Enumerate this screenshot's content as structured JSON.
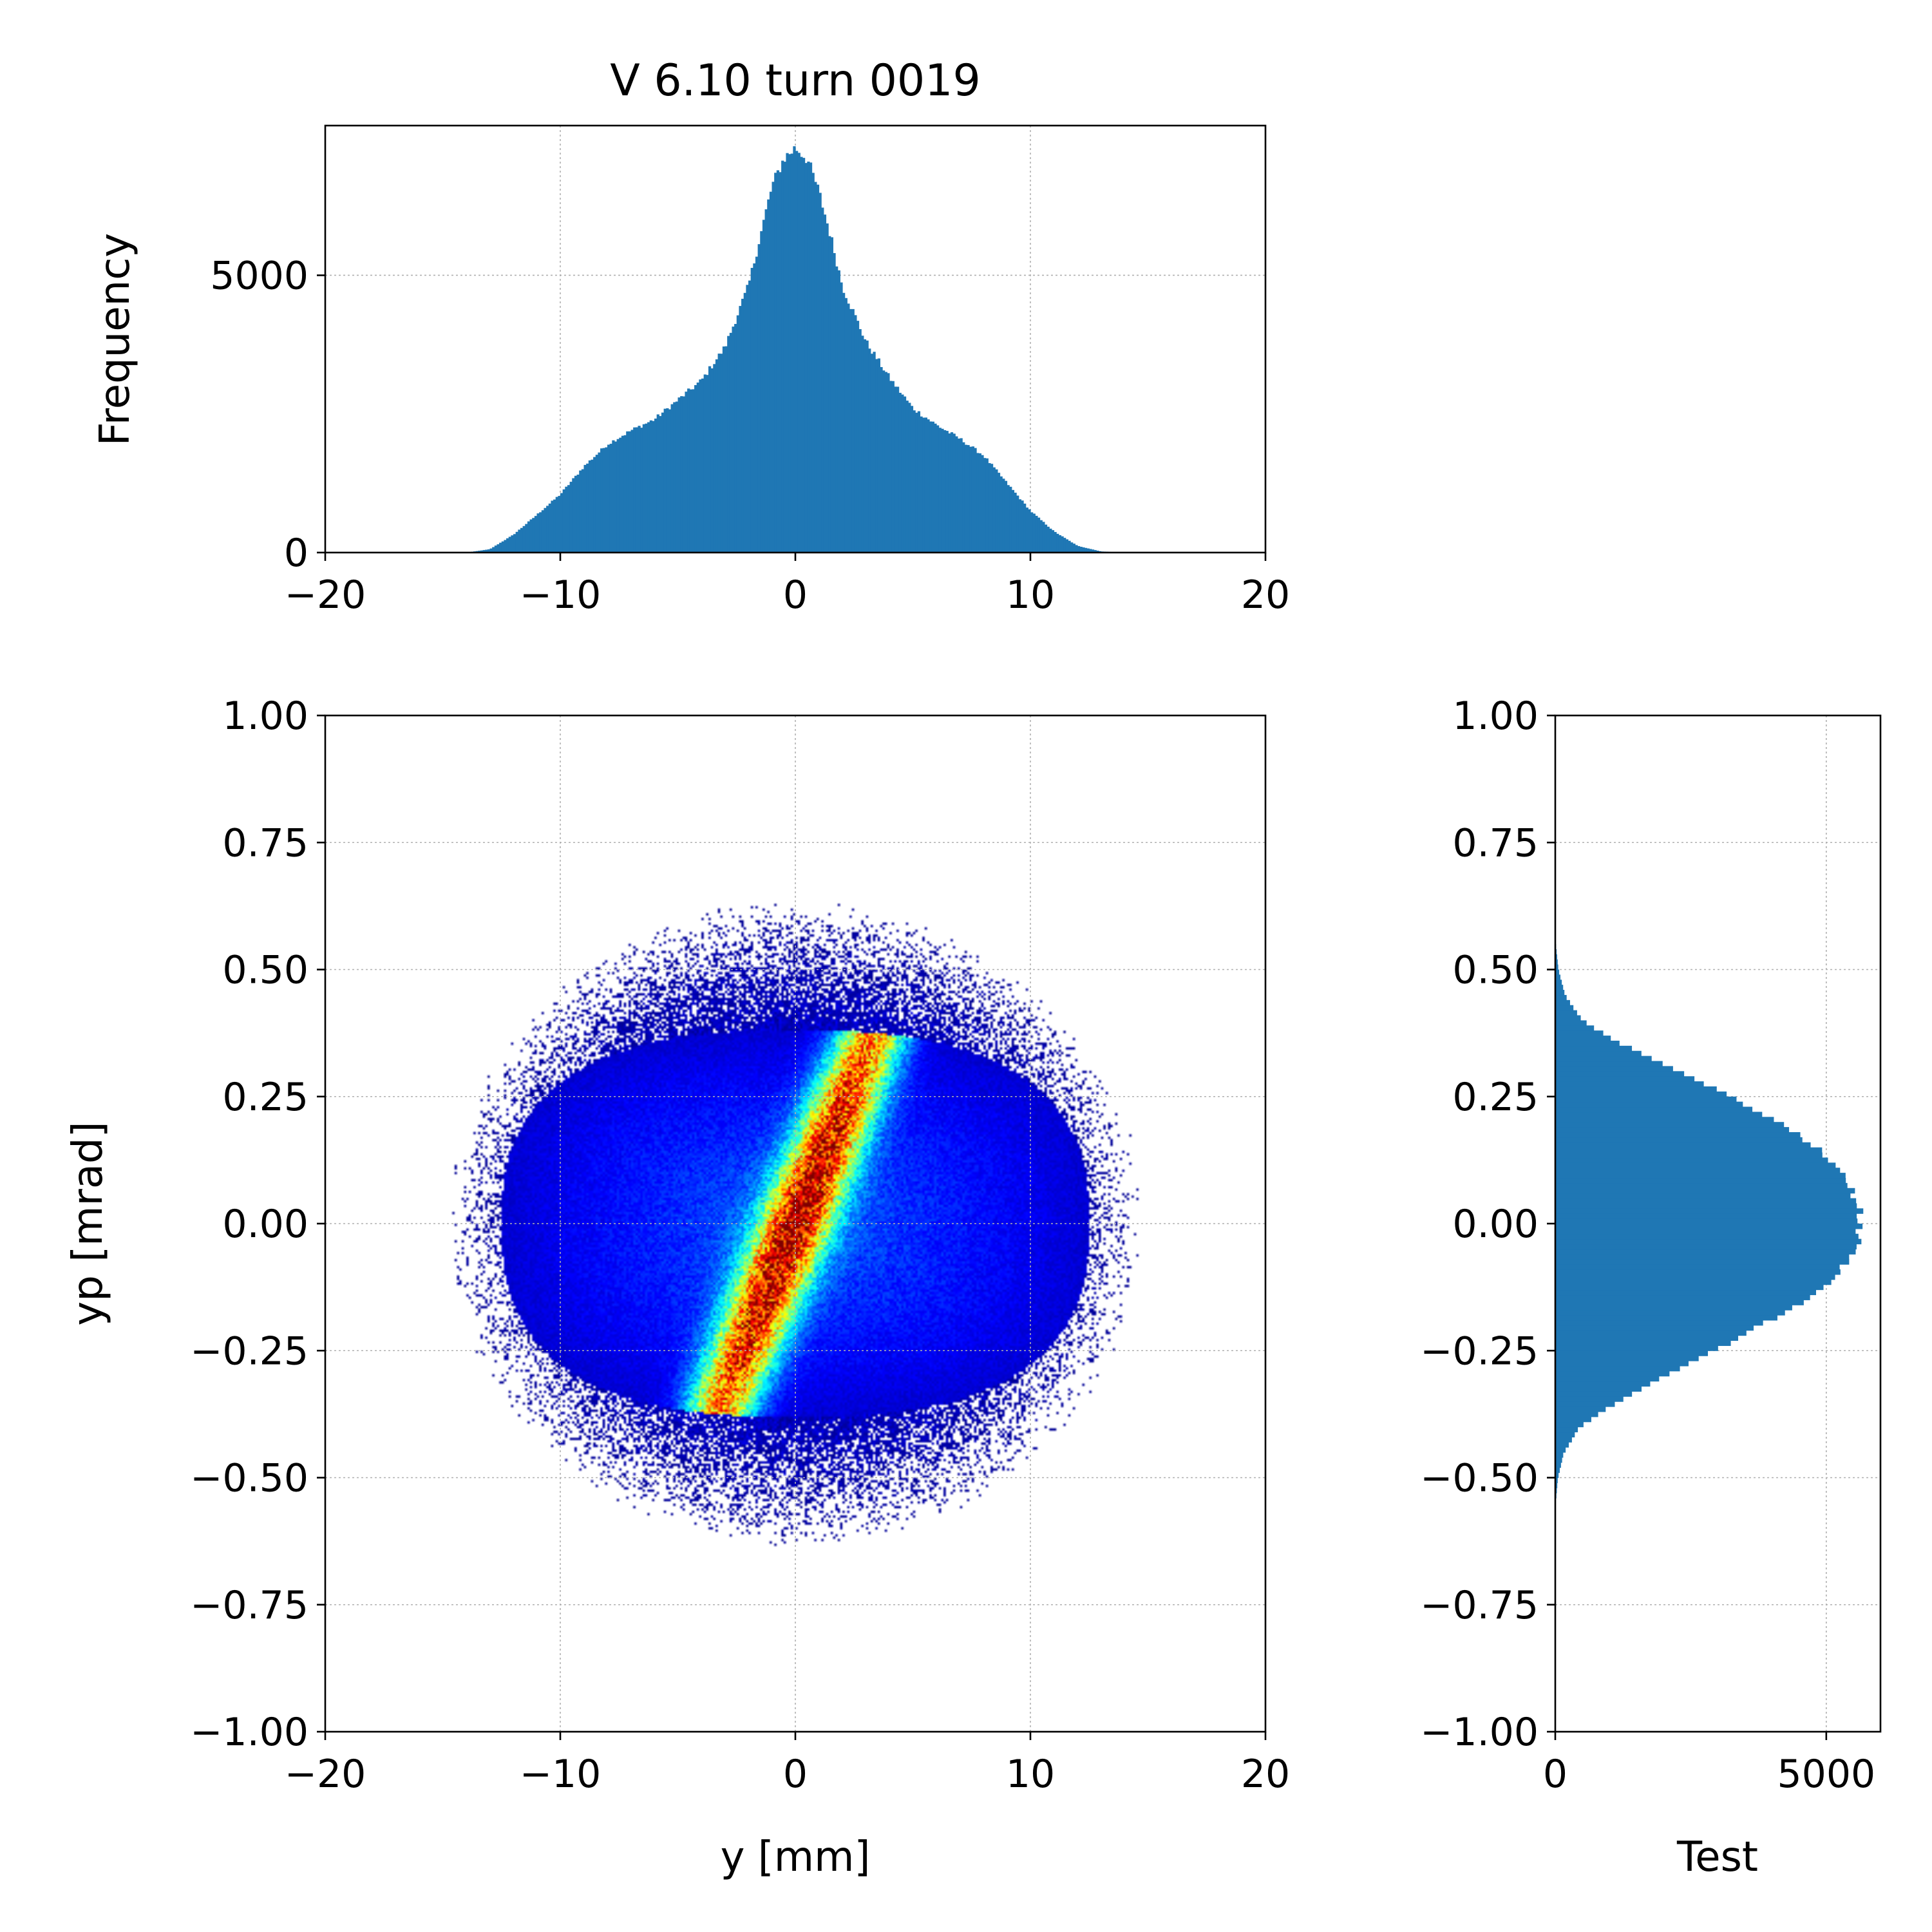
{
  "chart_data": [
    {
      "panel": "top-histogram",
      "type": "bar",
      "title": "V 6.10 turn 0019",
      "xlabel": "",
      "ylabel": "Frequency",
      "xlim": [
        -20,
        20
      ],
      "ylim": [
        0,
        7700
      ],
      "xticks": [
        "−20",
        "−10",
        "0",
        "10",
        "20"
      ],
      "yticks": [
        "0",
        "5000"
      ],
      "grid": true,
      "color": "#1f77b4",
      "series": [
        {
          "x": [
            -14,
            -13,
            -12,
            -11,
            -10,
            -9,
            -8,
            -7,
            -6,
            -5,
            -4,
            -3,
            -2,
            -1.5,
            -1,
            -0.5,
            0,
            0.5,
            1,
            1.5,
            2,
            3,
            4,
            5,
            6,
            7,
            8,
            9,
            10,
            11,
            12,
            13,
            14
          ],
          "values": [
            0,
            60,
            320,
            680,
            1050,
            1550,
            1950,
            2200,
            2400,
            2750,
            3100,
            3700,
            4800,
            5700,
            6600,
            7100,
            7300,
            7100,
            6500,
            5700,
            4800,
            3800,
            3150,
            2600,
            2300,
            2050,
            1750,
            1250,
            750,
            380,
            120,
            20,
            0
          ]
        }
      ]
    },
    {
      "panel": "phase-space-density",
      "type": "heatmap",
      "title": "",
      "xlabel": "y [mm]",
      "ylabel": "yp [mrad]",
      "xlim": [
        -20,
        20
      ],
      "ylim": [
        -1.0,
        1.0
      ],
      "xticks": [
        "−20",
        "−10",
        "0",
        "10",
        "20"
      ],
      "yticks": [
        "1.00",
        "0.75",
        "0.50",
        "0.25",
        "0.00",
        "−0.25",
        "−0.50",
        "−0.75",
        "−1.00"
      ],
      "grid": true,
      "colormap": "jet",
      "colormap_stops": [
        "#00007f",
        "#0000ff",
        "#007fff",
        "#00ffff",
        "#7fff7f",
        "#ffff00",
        "#ff7f00",
        "#ff0000",
        "#7f0000"
      ],
      "distribution": {
        "core_center": [
          0,
          0
        ],
        "core_slope_mrad_per_mm": 0.11,
        "core_extent_y_mm": 5.5,
        "core_halfwidth_yp_mrad": 0.12,
        "halo_half_y_mm": 12.5,
        "halo_half_yp_mrad": 0.38,
        "outer_half_y_mm": 13.5,
        "outer_half_yp_mrad": 0.58
      }
    },
    {
      "panel": "right-histogram",
      "type": "bar",
      "orientation": "horizontal",
      "title": "",
      "xlabel": "Test",
      "ylabel": "",
      "xlim": [
        0,
        6000
      ],
      "ylim": [
        -1.0,
        1.0
      ],
      "xticks": [
        "0",
        "5000"
      ],
      "yticks": [
        "1.00",
        "0.75",
        "0.50",
        "0.25",
        "0.00",
        "−0.25",
        "−0.50",
        "−0.75",
        "−1.00"
      ],
      "grid": true,
      "color": "#1f77b4",
      "series": [
        {
          "yp": [
            0.56,
            0.5,
            0.45,
            0.4,
            0.36,
            0.3,
            0.25,
            0.2,
            0.15,
            0.1,
            0.05,
            0.0,
            -0.05,
            -0.1,
            -0.15,
            -0.2,
            -0.25,
            -0.3,
            -0.36,
            -0.4,
            -0.45,
            -0.5,
            -0.56
          ],
          "values": [
            0,
            60,
            180,
            500,
            1100,
            2300,
            3250,
            4100,
            4850,
            5250,
            5550,
            5650,
            5550,
            5200,
            4600,
            3800,
            2950,
            2000,
            1000,
            450,
            160,
            50,
            0
          ]
        }
      ]
    }
  ]
}
